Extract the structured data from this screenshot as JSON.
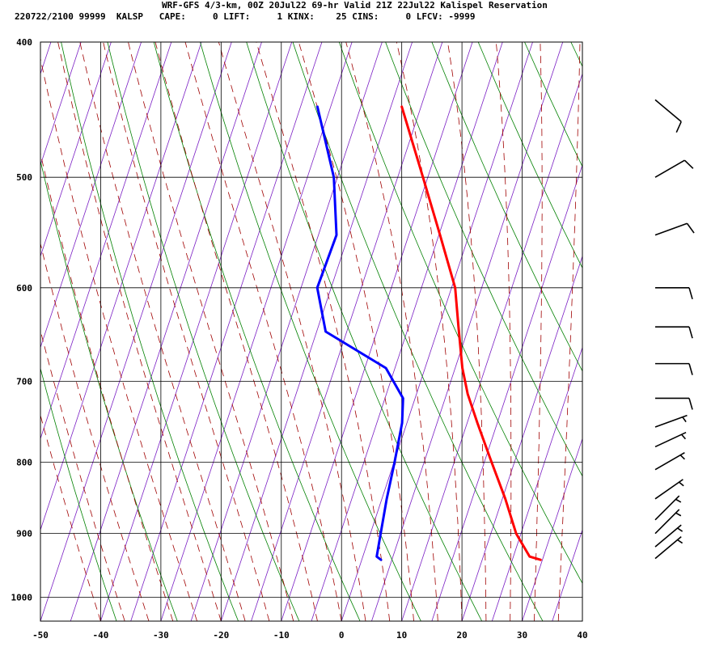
{
  "header": {
    "line1": "WRF-GFS 4/3-km, 00Z 20Jul22 69-hr Valid 21Z 22Jul22 Kalispel Reservation",
    "line2": "220722/2100 99999  KALSP   CAPE:     0 LIFT:     1 KINX:    25 CINS:     0 LFCV: -9999"
  },
  "chart_data": {
    "type": "line",
    "subtype": "skew-T log-p sounding",
    "title": "WRF-GFS 4/3-km, 00Z 20Jul22 69-hr Valid 21Z 22Jul22 Kalispel Reservation",
    "xlim": [
      -50,
      40
    ],
    "ylim": [
      1040,
      400
    ],
    "y_scale": "log",
    "x_ticks": [
      -50,
      -40,
      -30,
      -20,
      -10,
      0,
      10,
      20,
      30,
      40
    ],
    "x_tick_labels": [
      "-50",
      "-40",
      "-30",
      "-20",
      "-10",
      "0",
      "10",
      "20",
      "30",
      "40"
    ],
    "y_ticks": [
      400,
      500,
      600,
      700,
      800,
      900,
      1000
    ],
    "y_tick_labels": [
      "400",
      "500",
      "600",
      "700",
      "800",
      "900",
      "1000"
    ],
    "grid": true,
    "series": [
      {
        "color": "#ff0000",
        "points": [
          {
            "p": 940,
            "t": 29.7
          },
          {
            "p": 935,
            "t": 27.7
          },
          {
            "p": 900,
            "t": 24.2
          },
          {
            "p": 850,
            "t": 20.5
          },
          {
            "p": 800,
            "t": 16.2
          },
          {
            "p": 750,
            "t": 11.7
          },
          {
            "p": 715,
            "t": 8.5
          },
          {
            "p": 685,
            "t": 6.2
          },
          {
            "p": 640,
            "t": 3.3
          },
          {
            "p": 600,
            "t": 0.6
          },
          {
            "p": 550,
            "t": -4.8
          },
          {
            "p": 500,
            "t": -10.8
          },
          {
            "p": 445,
            "t": -18.2
          }
        ]
      },
      {
        "color": "#0000ff",
        "points": [
          {
            "p": 940,
            "t": 3.2
          },
          {
            "p": 935,
            "t": 2.3
          },
          {
            "p": 900,
            "t": 1.7
          },
          {
            "p": 850,
            "t": 0.8
          },
          {
            "p": 800,
            "t": 0.1
          },
          {
            "p": 750,
            "t": -0.8
          },
          {
            "p": 720,
            "t": -2.0
          },
          {
            "p": 685,
            "t": -6.5
          },
          {
            "p": 645,
            "t": -18.5
          },
          {
            "p": 600,
            "t": -22.3
          },
          {
            "p": 550,
            "t": -22.0
          },
          {
            "p": 500,
            "t": -25.6
          },
          {
            "p": 445,
            "t": -32.2
          }
        ]
      }
    ],
    "wind_barbs": [
      {
        "p": 938,
        "dir": 230,
        "kt": 5
      },
      {
        "p": 920,
        "dir": 230,
        "kt": 5
      },
      {
        "p": 900,
        "dir": 225,
        "kt": 5
      },
      {
        "p": 880,
        "dir": 225,
        "kt": 5
      },
      {
        "p": 850,
        "dir": 235,
        "kt": 5
      },
      {
        "p": 810,
        "dir": 240,
        "kt": 5
      },
      {
        "p": 780,
        "dir": 245,
        "kt": 5
      },
      {
        "p": 755,
        "dir": 250,
        "kt": 5
      },
      {
        "p": 720,
        "dir": 270,
        "kt": 10
      },
      {
        "p": 680,
        "dir": 270,
        "kt": 10
      },
      {
        "p": 640,
        "dir": 270,
        "kt": 10
      },
      {
        "p": 600,
        "dir": 270,
        "kt": 10
      },
      {
        "p": 550,
        "dir": 250,
        "kt": 10
      },
      {
        "p": 500,
        "dir": 240,
        "kt": 10
      },
      {
        "p": 440,
        "dir": 310,
        "kt": 10
      }
    ],
    "background_lines": {
      "isotherm_color": "#7b1fc4",
      "dry_adiabat_color": "#008000",
      "moist_adiabat_color": "#a00000",
      "grid_color": "#000000"
    }
  }
}
